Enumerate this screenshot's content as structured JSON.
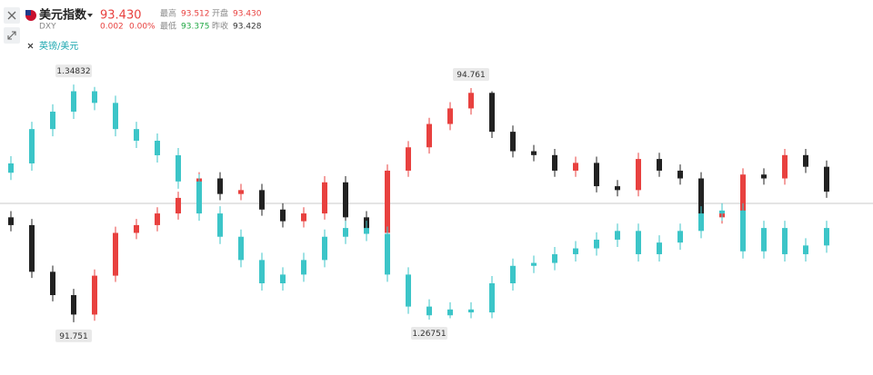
{
  "header": {
    "symbol": "DXY",
    "last": "93.430",
    "change": "0.002",
    "change_pct": "0.00%",
    "high_label": "最高",
    "high": "93.512",
    "open_label": "开盘",
    "open": "93.430",
    "low_label": "最低",
    "low": "93.375",
    "prev_close_label": "昨收",
    "prev_close": "93.428"
  },
  "chart_data": {
    "type": "candlestick",
    "ylim": [
      91.575,
      94.96
    ],
    "y2lim": [
      1.2619,
      1.3524
    ],
    "series": [
      {
        "name": "美元指数",
        "up_color": "#e8413f",
        "down_color": "#222222",
        "open": [
          93.1,
          93.0,
          92.4,
          92.1,
          91.85,
          92.35,
          92.9,
          93.0,
          93.15,
          93.35,
          93.6,
          93.4,
          93.45,
          93.2,
          93.05,
          93.15,
          93.55,
          93.1,
          92.9,
          93.7,
          94.0,
          94.3,
          94.5,
          94.7,
          94.2,
          93.95,
          93.9,
          93.7,
          93.8,
          93.5,
          93.45,
          93.85,
          93.7,
          93.6,
          93.1,
          93.15,
          93.65,
          93.6,
          93.9,
          93.75
        ],
        "high": [
          93.18,
          93.08,
          92.48,
          92.18,
          92.43,
          92.98,
          93.08,
          93.23,
          93.43,
          93.68,
          93.68,
          93.53,
          93.53,
          93.28,
          93.23,
          93.63,
          93.63,
          93.18,
          93.78,
          94.08,
          94.38,
          94.58,
          94.761,
          94.72,
          94.28,
          94.03,
          93.98,
          93.88,
          93.88,
          93.58,
          93.93,
          93.93,
          93.78,
          93.68,
          93.23,
          93.73,
          93.73,
          93.98,
          93.98,
          93.83
        ],
        "low": [
          92.92,
          92.32,
          92.02,
          91.751,
          91.77,
          92.27,
          92.82,
          92.92,
          93.07,
          93.27,
          93.32,
          93.32,
          93.12,
          92.97,
          92.97,
          93.07,
          93.02,
          92.82,
          92.82,
          93.62,
          93.92,
          94.22,
          94.42,
          94.12,
          93.87,
          93.82,
          93.62,
          93.62,
          93.42,
          93.37,
          93.37,
          93.62,
          93.52,
          93.02,
          93.02,
          93.07,
          93.52,
          93.52,
          93.67,
          93.35
        ],
        "close": [
          93.0,
          92.4,
          92.1,
          91.85,
          92.35,
          92.9,
          93.0,
          93.15,
          93.35,
          93.6,
          93.4,
          93.45,
          93.2,
          93.05,
          93.15,
          93.55,
          93.1,
          92.9,
          93.7,
          94.0,
          94.3,
          94.5,
          94.7,
          94.2,
          93.95,
          93.9,
          93.7,
          93.8,
          93.5,
          93.45,
          93.85,
          93.7,
          93.6,
          93.1,
          93.15,
          93.65,
          93.6,
          93.9,
          93.75,
          93.43
        ]
      },
      {
        "name": "英镑/美元",
        "axis": "y2",
        "up_color": "#3cc5c8",
        "down_color": "#3cc5c8",
        "open": [
          1.318,
          1.3212,
          1.333,
          1.339,
          1.346,
          1.342,
          1.333,
          1.329,
          1.324,
          1.315,
          1.304,
          1.296,
          1.288,
          1.28,
          1.283,
          1.288,
          1.296,
          1.299,
          1.297,
          1.283,
          1.272,
          1.269,
          1.271,
          1.27,
          1.28,
          1.286,
          1.287,
          1.29,
          1.292,
          1.295,
          1.298,
          1.29,
          1.294,
          1.298,
          1.304,
          1.305,
          1.291,
          1.299,
          1.29,
          1.293
        ],
        "high": [
          1.3237,
          1.3355,
          1.3415,
          1.34832,
          1.3475,
          1.3445,
          1.3355,
          1.3315,
          1.3265,
          1.3175,
          1.3065,
          1.2985,
          1.2905,
          1.2855,
          1.2905,
          1.2985,
          1.3015,
          1.3015,
          1.2995,
          1.2855,
          1.2745,
          1.2735,
          1.2735,
          1.2825,
          1.2885,
          1.2895,
          1.2925,
          1.2945,
          1.2975,
          1.3005,
          1.3005,
          1.2965,
          1.3005,
          1.3065,
          1.3075,
          1.3075,
          1.3015,
          1.3015,
          1.2955,
          1.3015
        ],
        "low": [
          1.3155,
          1.3187,
          1.3305,
          1.3365,
          1.3395,
          1.3305,
          1.3265,
          1.3215,
          1.3125,
          1.3015,
          1.2935,
          1.2855,
          1.2775,
          1.2775,
          1.2805,
          1.2855,
          1.2935,
          1.2945,
          1.2805,
          1.2695,
          1.26751,
          1.268,
          1.268,
          1.268,
          1.2775,
          1.2835,
          1.2845,
          1.2875,
          1.2895,
          1.2925,
          1.2875,
          1.2875,
          1.2915,
          1.2955,
          1.3015,
          1.2885,
          1.2885,
          1.2875,
          1.2875,
          1.2905
        ],
        "close": [
          1.3212,
          1.333,
          1.339,
          1.346,
          1.342,
          1.333,
          1.329,
          1.324,
          1.315,
          1.304,
          1.296,
          1.288,
          1.28,
          1.283,
          1.288,
          1.296,
          1.299,
          1.297,
          1.283,
          1.272,
          1.269,
          1.271,
          1.27,
          1.28,
          1.286,
          1.287,
          1.29,
          1.292,
          1.295,
          1.298,
          1.29,
          1.294,
          1.298,
          1.304,
          1.305,
          1.291,
          1.299,
          1.29,
          1.293,
          1.299
        ]
      }
    ]
  }
}
